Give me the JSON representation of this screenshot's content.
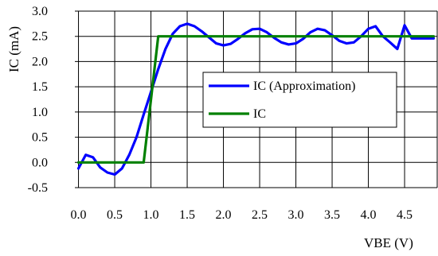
{
  "chart_data": {
    "type": "line",
    "title": "",
    "xlabel": "VBE (V)",
    "ylabel": "IC (mA)",
    "xlim": [
      -0.05,
      4.95
    ],
    "ylim": [
      -0.5,
      3.0
    ],
    "grid": true,
    "legend_position": "center-right",
    "x_ticks": [
      "0.0",
      "0.5",
      "1.0",
      "1.5",
      "2.0",
      "2.5",
      "3.0",
      "3.5",
      "4.0",
      "4.5"
    ],
    "y_ticks": [
      "3.0",
      "2.5",
      "2.0",
      "1.5",
      "1.0",
      "0.5",
      "0.0",
      "-0.5"
    ],
    "series": [
      {
        "name": "IC (Approximation)",
        "color": "#0000ff",
        "x": [
          0.0,
          0.1,
          0.2,
          0.3,
          0.4,
          0.5,
          0.6,
          0.7,
          0.8,
          0.9,
          1.0,
          1.1,
          1.2,
          1.3,
          1.4,
          1.5,
          1.6,
          1.7,
          1.8,
          1.9,
          2.0,
          2.1,
          2.2,
          2.3,
          2.4,
          2.5,
          2.6,
          2.7,
          2.8,
          2.9,
          3.0,
          3.1,
          3.2,
          3.3,
          3.4,
          3.5,
          3.6,
          3.7,
          3.8,
          3.9,
          4.0,
          4.1,
          4.2,
          4.3,
          4.4,
          4.5,
          4.6,
          4.7,
          4.8,
          4.9
        ],
        "values": [
          -0.12,
          0.15,
          0.1,
          -0.1,
          -0.2,
          -0.24,
          -0.12,
          0.15,
          0.5,
          0.95,
          1.4,
          1.85,
          2.25,
          2.55,
          2.7,
          2.75,
          2.7,
          2.6,
          2.48,
          2.36,
          2.32,
          2.35,
          2.45,
          2.56,
          2.64,
          2.65,
          2.58,
          2.47,
          2.38,
          2.34,
          2.36,
          2.45,
          2.58,
          2.65,
          2.62,
          2.52,
          2.41,
          2.36,
          2.38,
          2.5,
          2.65,
          2.7,
          2.5,
          2.38,
          2.25,
          2.72,
          2.46,
          2.46,
          2.46,
          2.46
        ]
      },
      {
        "name": "IC",
        "color": "#008000",
        "x": [
          0.0,
          0.9,
          1.0,
          1.1,
          4.9
        ],
        "values": [
          0.0,
          0.0,
          1.25,
          2.5,
          2.5
        ]
      }
    ]
  }
}
